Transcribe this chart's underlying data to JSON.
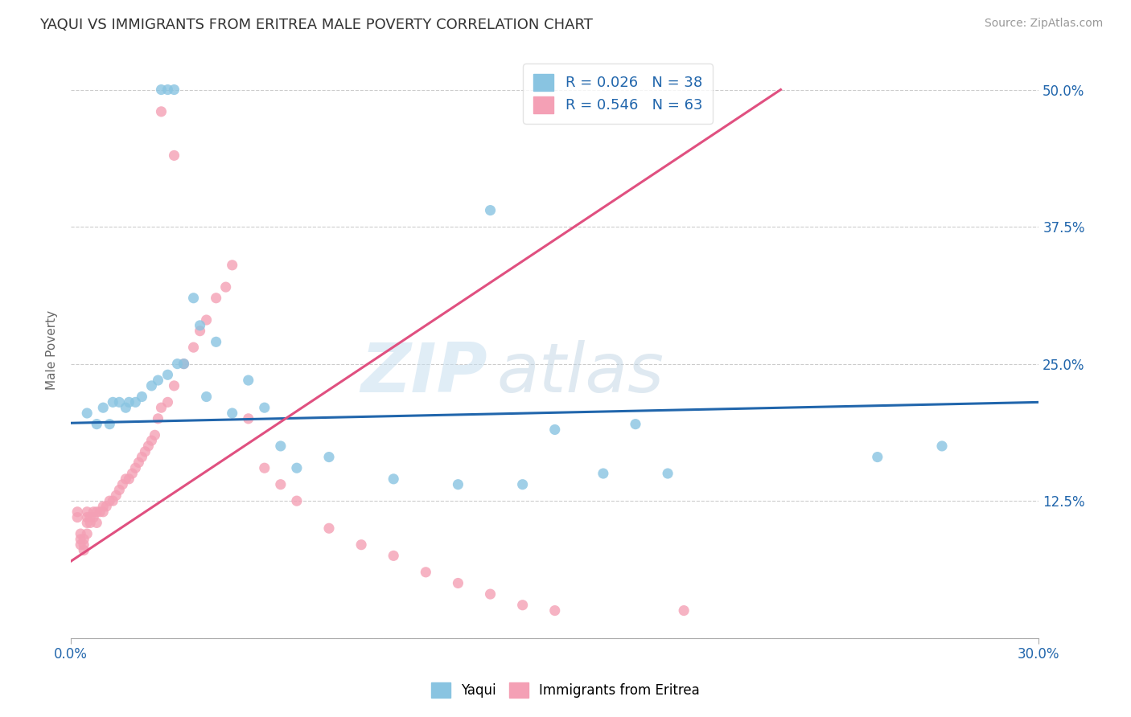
{
  "title": "YAQUI VS IMMIGRANTS FROM ERITREA MALE POVERTY CORRELATION CHART",
  "source": "Source: ZipAtlas.com",
  "ylabel": "Male Poverty",
  "x_min": 0.0,
  "x_max": 0.3,
  "y_min": 0.0,
  "y_max": 0.525,
  "y_ticks": [
    0.0,
    0.125,
    0.25,
    0.375,
    0.5
  ],
  "y_tick_labels": [
    "",
    "12.5%",
    "25.0%",
    "37.5%",
    "50.0%"
  ],
  "legend_labels": [
    "Yaqui",
    "Immigrants from Eritrea"
  ],
  "legend_R": [
    "R = 0.026",
    "R = 0.546"
  ],
  "legend_N": [
    "N = 38",
    "N = 63"
  ],
  "blue_color": "#89c4e1",
  "pink_color": "#f4a0b5",
  "blue_line_color": "#2166ac",
  "pink_line_color": "#e05080",
  "axis_label_color": "#2166ac",
  "watermark_zip": "ZIP",
  "watermark_atlas": "atlas",
  "blue_scatter_x": [
    0.03,
    0.032,
    0.028,
    0.005,
    0.008,
    0.01,
    0.012,
    0.013,
    0.015,
    0.017,
    0.018,
    0.02,
    0.022,
    0.025,
    0.027,
    0.03,
    0.033,
    0.035,
    0.038,
    0.04,
    0.042,
    0.045,
    0.05,
    0.055,
    0.06,
    0.065,
    0.07,
    0.08,
    0.1,
    0.12,
    0.14,
    0.165,
    0.185,
    0.25,
    0.27,
    0.13,
    0.15,
    0.175
  ],
  "blue_scatter_y": [
    0.5,
    0.5,
    0.5,
    0.205,
    0.195,
    0.21,
    0.195,
    0.215,
    0.215,
    0.21,
    0.215,
    0.215,
    0.22,
    0.23,
    0.235,
    0.24,
    0.25,
    0.25,
    0.31,
    0.285,
    0.22,
    0.27,
    0.205,
    0.235,
    0.21,
    0.175,
    0.155,
    0.165,
    0.145,
    0.14,
    0.14,
    0.15,
    0.15,
    0.165,
    0.175,
    0.39,
    0.19,
    0.195
  ],
  "pink_scatter_x": [
    0.028,
    0.032,
    0.002,
    0.002,
    0.003,
    0.003,
    0.003,
    0.004,
    0.004,
    0.004,
    0.005,
    0.005,
    0.005,
    0.005,
    0.006,
    0.006,
    0.007,
    0.007,
    0.008,
    0.008,
    0.009,
    0.01,
    0.01,
    0.011,
    0.012,
    0.013,
    0.014,
    0.015,
    0.016,
    0.017,
    0.018,
    0.019,
    0.02,
    0.021,
    0.022,
    0.023,
    0.024,
    0.025,
    0.026,
    0.027,
    0.028,
    0.03,
    0.032,
    0.035,
    0.038,
    0.04,
    0.042,
    0.045,
    0.048,
    0.05,
    0.055,
    0.06,
    0.065,
    0.07,
    0.08,
    0.09,
    0.1,
    0.11,
    0.12,
    0.13,
    0.14,
    0.15,
    0.19
  ],
  "pink_scatter_y": [
    0.48,
    0.44,
    0.115,
    0.11,
    0.095,
    0.09,
    0.085,
    0.09,
    0.085,
    0.08,
    0.115,
    0.11,
    0.105,
    0.095,
    0.11,
    0.105,
    0.115,
    0.11,
    0.115,
    0.105,
    0.115,
    0.12,
    0.115,
    0.12,
    0.125,
    0.125,
    0.13,
    0.135,
    0.14,
    0.145,
    0.145,
    0.15,
    0.155,
    0.16,
    0.165,
    0.17,
    0.175,
    0.18,
    0.185,
    0.2,
    0.21,
    0.215,
    0.23,
    0.25,
    0.265,
    0.28,
    0.29,
    0.31,
    0.32,
    0.34,
    0.2,
    0.155,
    0.14,
    0.125,
    0.1,
    0.085,
    0.075,
    0.06,
    0.05,
    0.04,
    0.03,
    0.025,
    0.025
  ],
  "blue_line_x": [
    0.0,
    0.3
  ],
  "blue_line_y": [
    0.196,
    0.215
  ],
  "pink_line_x": [
    0.0,
    0.22
  ],
  "pink_line_y": [
    0.07,
    0.5
  ]
}
